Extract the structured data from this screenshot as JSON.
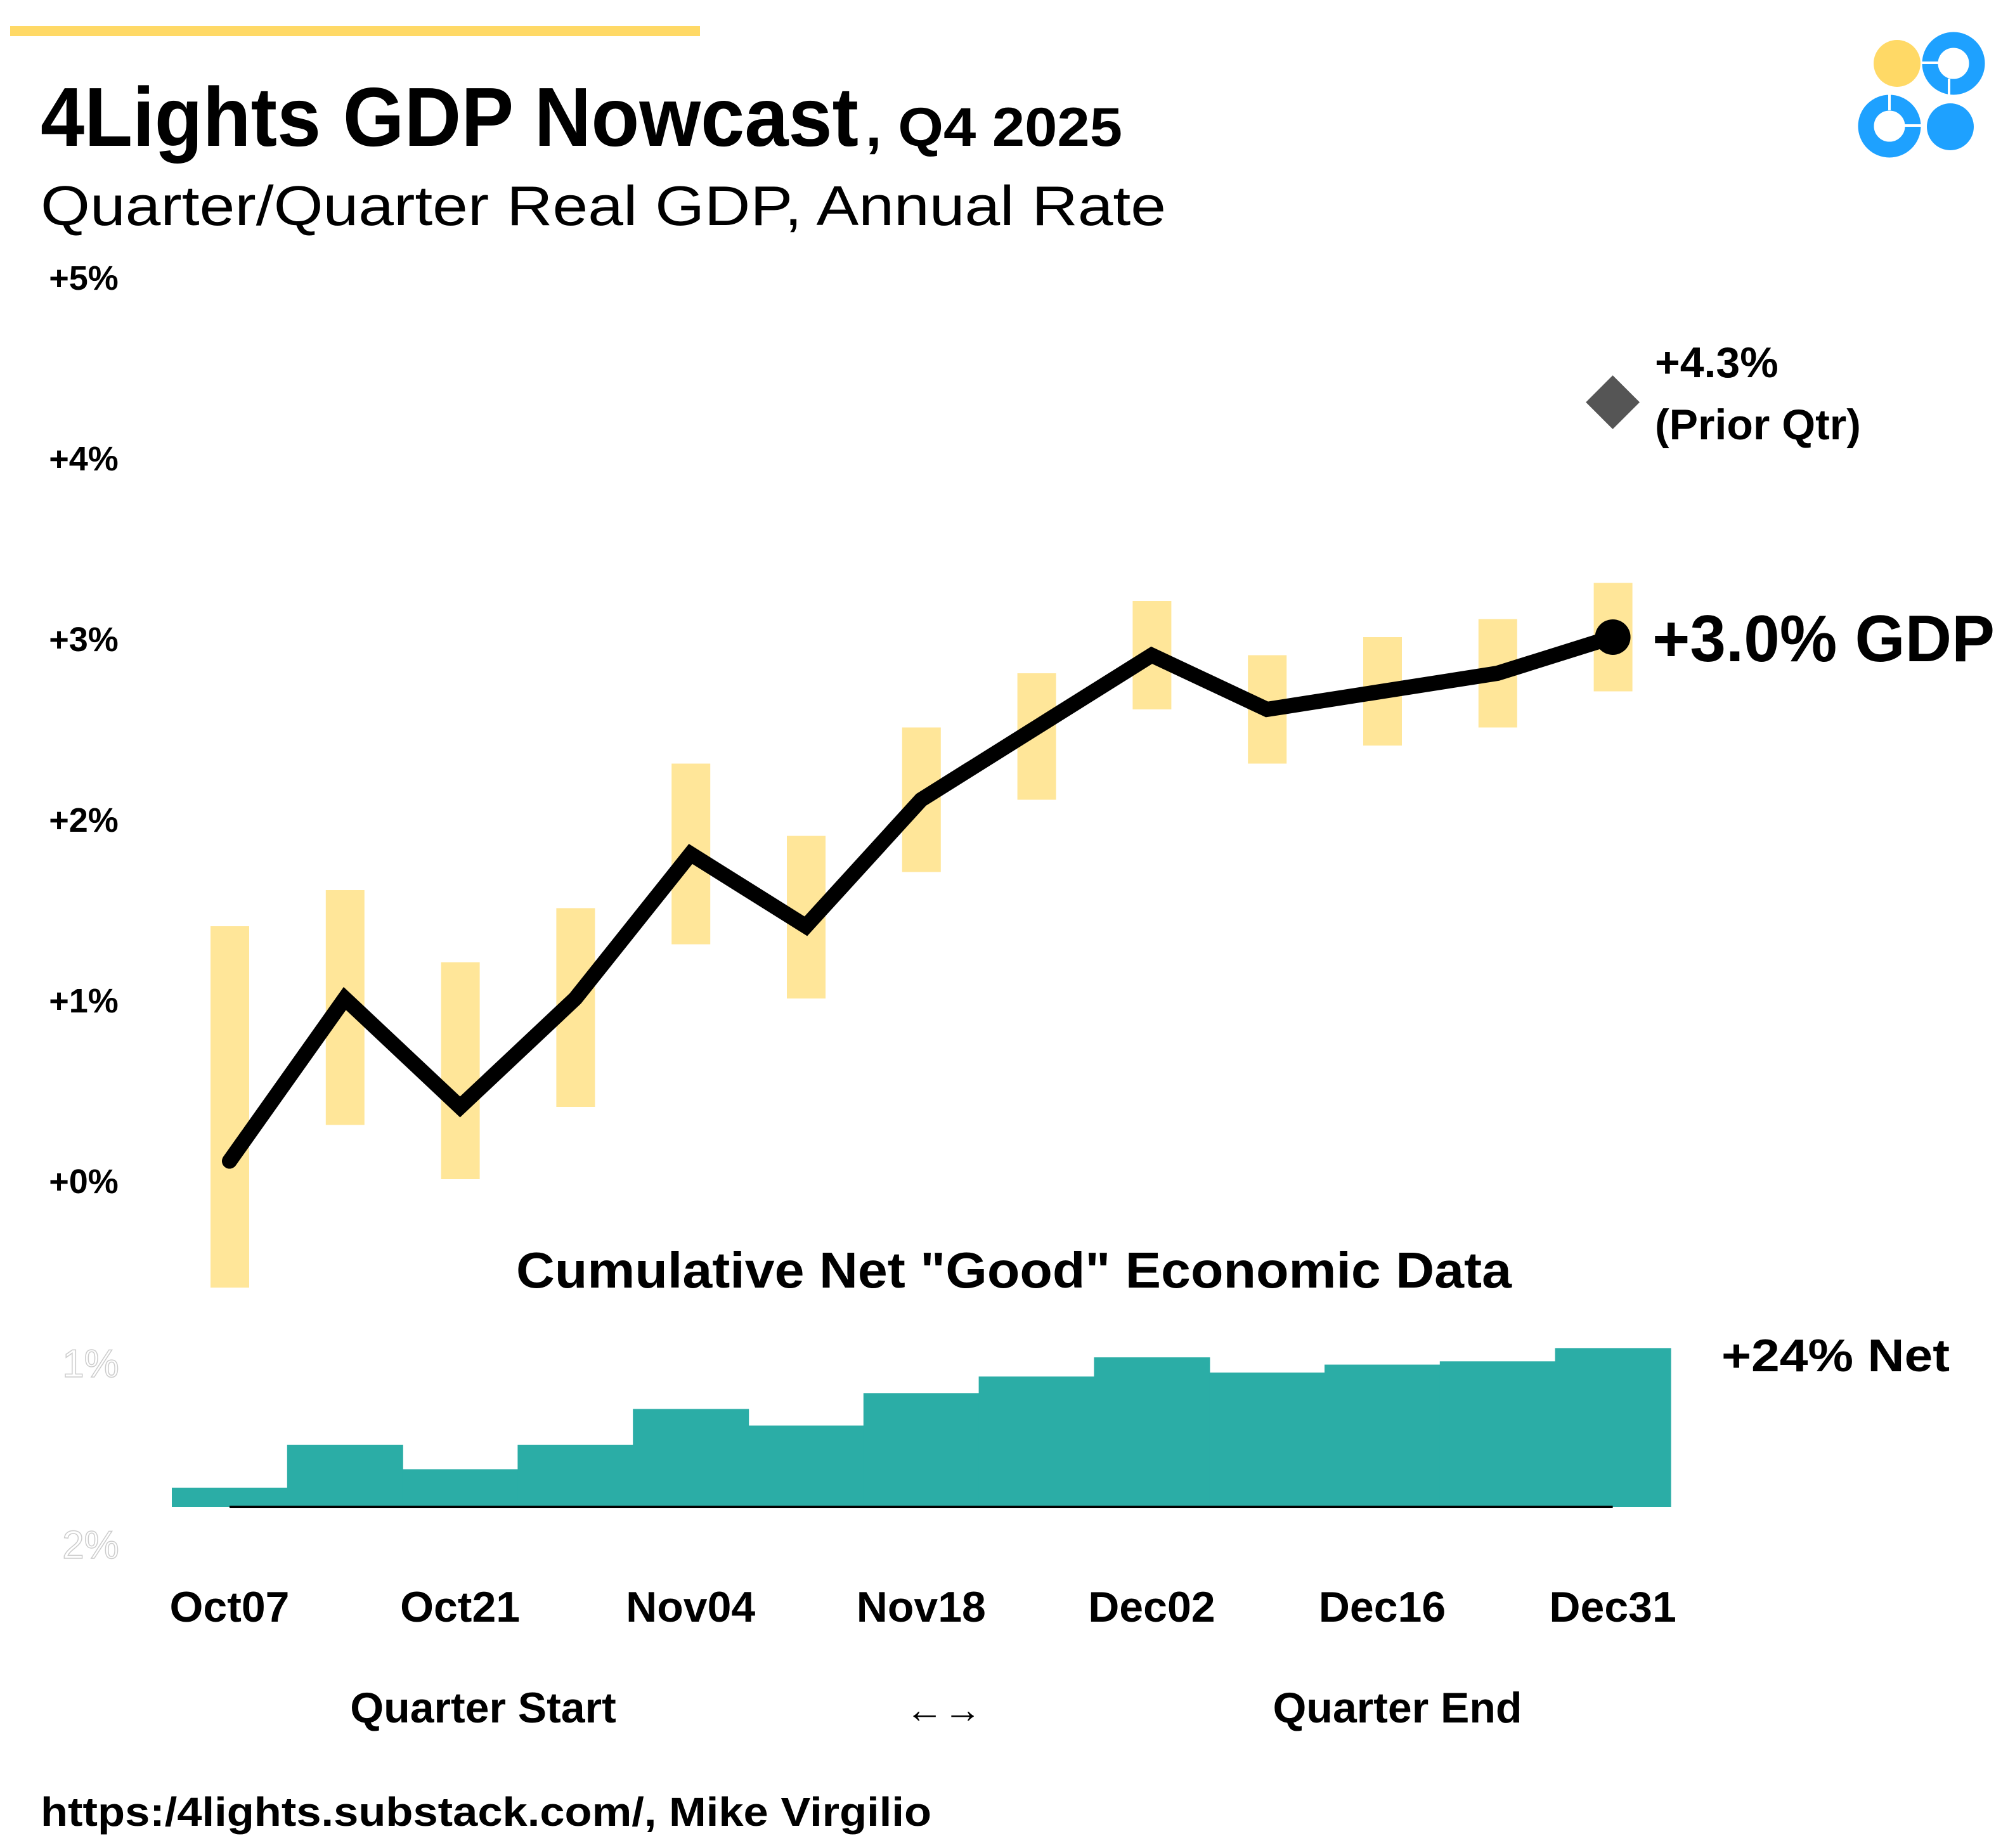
{
  "header": {
    "title": "4Lights GDP Nowcast",
    "title_suffix": ", Q4 2025",
    "subtitle": "Quarter/Quarter Real GDP, Annual Rate"
  },
  "colors": {
    "accent_yellow": "#FFD966",
    "range_band": "#FFE699",
    "line": "#000000",
    "prior_marker": "#555555",
    "net_bars": "#2BADA6",
    "logo_blue": "#1EA1FF"
  },
  "chart_data": [
    {
      "type": "line",
      "title": "4Lights GDP Nowcast, Q4 2025",
      "ylabel": "Quarter/Quarter Real GDP, Annual Rate",
      "ylim": [
        0,
        5
      ],
      "yticks": [
        "+0%",
        "+1%",
        "+2%",
        "+3%",
        "+4%",
        "+5%"
      ],
      "ytick_values": [
        0,
        1,
        2,
        3,
        4,
        5
      ],
      "x_labels": [
        "Oct07",
        "Oct21",
        "Nov04",
        "Nov18",
        "Dec02",
        "Dec16",
        "Dec31"
      ],
      "x_label_indices": [
        0,
        2,
        4,
        6,
        8,
        10,
        12
      ],
      "nowcast": [
        0.1,
        1.0,
        0.4,
        1.0,
        1.8,
        1.4,
        2.1,
        2.5,
        2.9,
        2.6,
        2.7,
        2.8,
        3.0
      ],
      "range_high": [
        1.4,
        1.6,
        1.2,
        1.5,
        2.3,
        1.9,
        2.5,
        2.8,
        3.2,
        2.9,
        3.0,
        3.1,
        3.3
      ],
      "range_low": [
        -0.6,
        0.3,
        0.0,
        0.4,
        1.3,
        1.0,
        1.7,
        2.1,
        2.6,
        2.3,
        2.4,
        2.5,
        2.7
      ],
      "prior_quarter": {
        "value": 4.3,
        "label": "+4.3%",
        "sublabel": "(Prior Qtr)"
      },
      "end_label": "+3.0% GDP",
      "grid": false
    },
    {
      "type": "bar",
      "title": "Cumulative Net \"Good\" Economic Data",
      "values": [
        2.9,
        9.4,
        5.7,
        9.4,
        14.8,
        12.3,
        17.2,
        19.7,
        22.6,
        20.3,
        21.5,
        22.0,
        24.0
      ],
      "yticks": [
        "1%",
        "2%"
      ],
      "end_label": "+24% Net"
    }
  ],
  "footer": {
    "quarter_start": "Quarter Start",
    "arrow": "←→",
    "quarter_end": "Quarter End",
    "source": "https:/4lights.substack.com/, Mike Virgilio"
  }
}
